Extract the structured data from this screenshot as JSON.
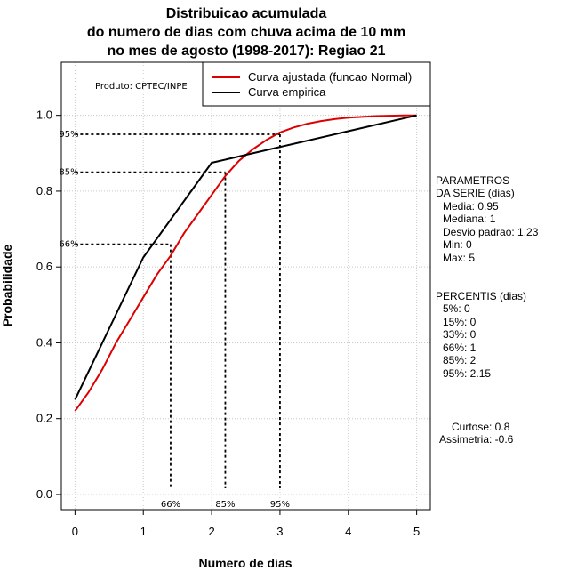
{
  "chart_data": {
    "type": "line",
    "title_lines": [
      "Distribuicao acumulada",
      "do numero de dias com chuva acima de 10 mm",
      "no mes de agosto (1998-2017): Regiao 21"
    ],
    "xlabel": "Numero de dias",
    "ylabel": "Probabilidade",
    "xlim": [
      -0.2,
      5.2
    ],
    "ylim": [
      -0.04,
      1.14
    ],
    "x_ticks": [
      0,
      1,
      2,
      3,
      4,
      5
    ],
    "y_ticks": [
      0.0,
      0.2,
      0.4,
      0.6,
      0.8,
      1.0
    ],
    "x_tick_labels": [
      "0",
      "1",
      "2",
      "3",
      "4",
      "5"
    ],
    "y_tick_labels": [
      "0.0",
      "0.2",
      "0.4",
      "0.6",
      "0.8",
      "1.0"
    ],
    "grid": true,
    "series": [
      {
        "name": "Curva ajustada (funcao Normal)",
        "color": "#dd0000",
        "x": [
          0,
          0.2,
          0.4,
          0.6,
          0.8,
          1.0,
          1.2,
          1.4,
          1.6,
          1.8,
          2.0,
          2.2,
          2.4,
          2.6,
          2.8,
          3.0,
          3.2,
          3.4,
          3.6,
          3.8,
          4.0,
          4.2,
          4.4,
          4.6,
          4.8,
          5.0
        ],
        "y": [
          0.22,
          0.27,
          0.33,
          0.4,
          0.46,
          0.52,
          0.58,
          0.63,
          0.69,
          0.74,
          0.79,
          0.84,
          0.88,
          0.91,
          0.935,
          0.955,
          0.968,
          0.978,
          0.985,
          0.99,
          0.994,
          0.996,
          0.998,
          0.999,
          1.0,
          1.0
        ]
      },
      {
        "name": "Curva empirica",
        "color": "#000000",
        "x": [
          0,
          1,
          2,
          5
        ],
        "y": [
          0.25,
          0.625,
          0.875,
          1.0
        ]
      }
    ],
    "percentile_lines": [
      {
        "label": "66%",
        "x": 1.4,
        "y": 0.66
      },
      {
        "label": "85%",
        "x": 2.2,
        "y": 0.85
      },
      {
        "label": "95%",
        "x": 3.0,
        "y": 0.95
      }
    ],
    "legend_position": "top-right",
    "product_label": "Produto: CPTEC/INPE",
    "params_lines": [
      "PARAMETROS",
      "DA SERIE (dias)",
      "Media: 0.95",
      "Mediana: 1",
      "Desvio padrao: 1.23",
      "Min: 0",
      "Max: 5"
    ],
    "percentis_lines": [
      "PERCENTIS (dias)",
      "5%: 0",
      "15%: 0",
      "33%: 0",
      "66%: 1",
      "85%: 2",
      "95%: 2.15"
    ],
    "curtose": "Curtose: 0.8",
    "assimetria": "Assimetria: -0.6"
  }
}
